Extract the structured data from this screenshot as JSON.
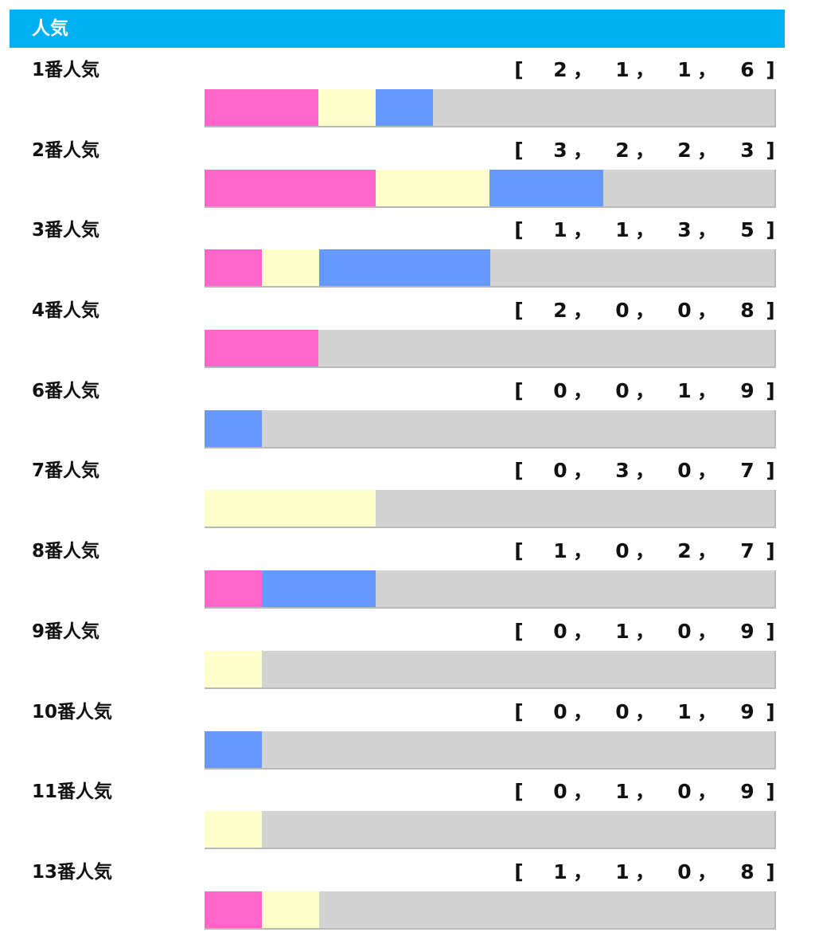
{
  "header": {
    "title": "人気"
  },
  "colors": {
    "header_bg": "#00b0f0",
    "first": "#ff66cc",
    "second": "#ffffcc",
    "third": "#6699ff",
    "other": "#d3d3d3"
  },
  "chart_data": {
    "type": "bar",
    "stacked": true,
    "orientation": "horizontal",
    "title": "人気",
    "total_per_row": 10,
    "categories": [
      "1番人気",
      "2番人気",
      "3番人気",
      "4番人気",
      "6番人気",
      "7番人気",
      "8番人気",
      "9番人気",
      "10番人気",
      "11番人気",
      "13番人気"
    ],
    "series": [
      {
        "color": "#ff66cc",
        "values": [
          2,
          3,
          1,
          2,
          0,
          0,
          1,
          0,
          0,
          0,
          1
        ]
      },
      {
        "color": "#ffffcc",
        "values": [
          1,
          2,
          1,
          0,
          0,
          3,
          0,
          1,
          0,
          1,
          1
        ]
      },
      {
        "color": "#6699ff",
        "values": [
          1,
          2,
          3,
          0,
          1,
          0,
          2,
          0,
          1,
          0,
          0
        ]
      },
      {
        "color": "#d3d3d3",
        "values": [
          6,
          3,
          5,
          8,
          9,
          7,
          7,
          9,
          9,
          9,
          8
        ]
      }
    ],
    "stat_format": {
      "open": "[",
      "separator": "，",
      "close": "]"
    }
  }
}
